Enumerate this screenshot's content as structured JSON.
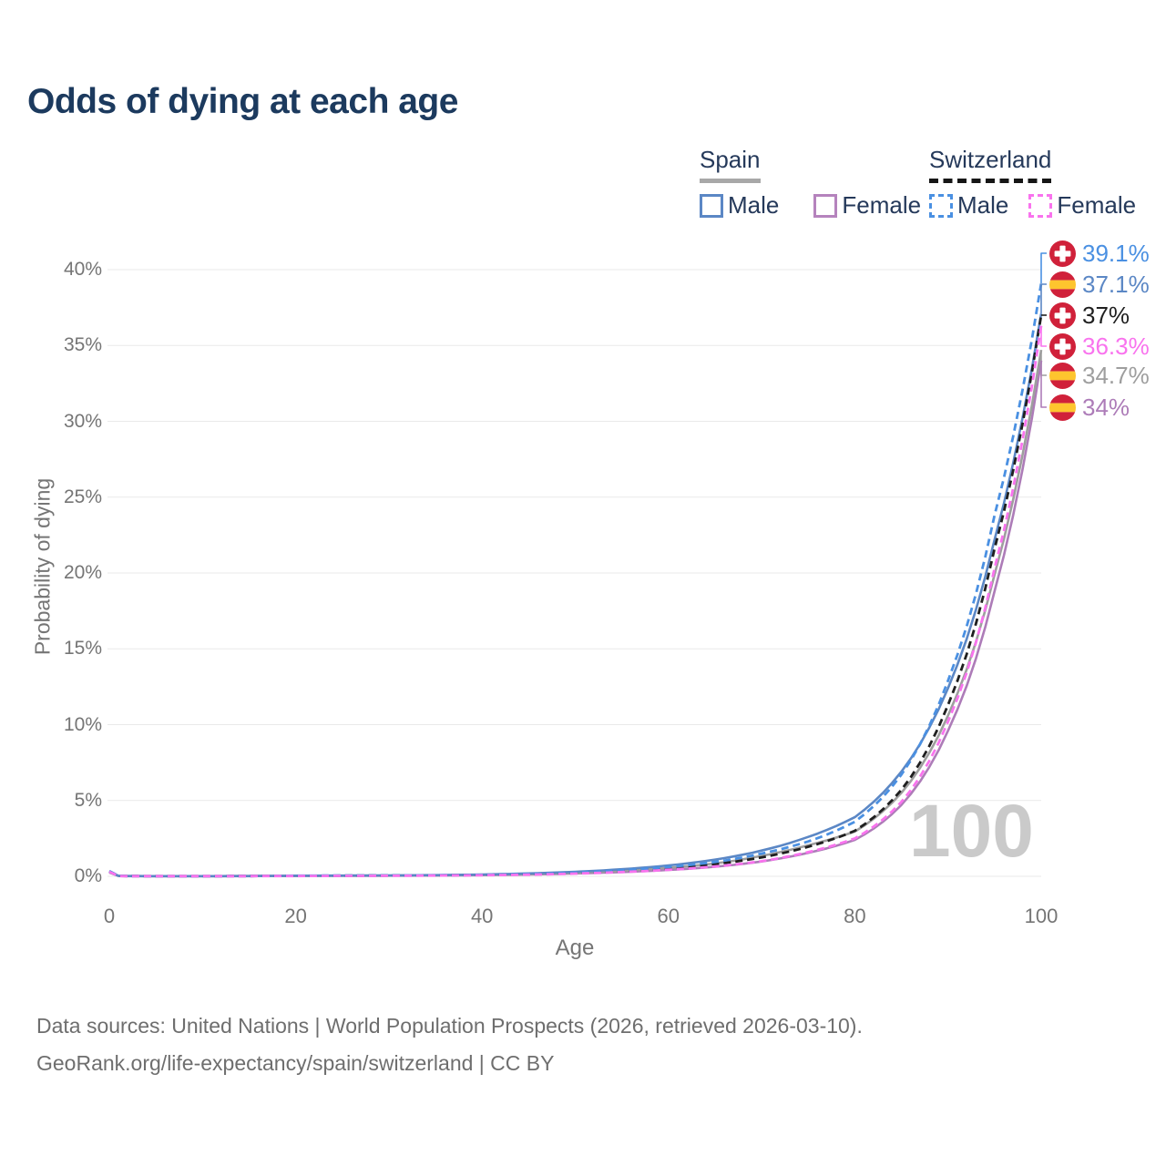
{
  "page_title": "Odds of dying at each age",
  "legend": {
    "groups": [
      {
        "name": "Spain",
        "line_style": "solid",
        "underline_color": "#a8a8a8",
        "items": [
          {
            "label": "Male",
            "color": "#5b87c5"
          },
          {
            "label": "Female",
            "color": "#b583bd"
          }
        ]
      },
      {
        "name": "Switzerland",
        "line_style": "dashed",
        "underline_color": "#161616",
        "items": [
          {
            "label": "Male",
            "color": "#4a90e2"
          },
          {
            "label": "Female",
            "color": "#f973ee"
          }
        ]
      }
    ]
  },
  "chart_data": {
    "type": "line",
    "title": "Odds of dying at each age",
    "xlabel": "Age",
    "ylabel": "Probability of dying",
    "xlim": [
      0,
      100
    ],
    "ylim": [
      0,
      40
    ],
    "x_ticks": [
      0,
      20,
      40,
      60,
      80,
      100
    ],
    "y_ticks": [
      0,
      5,
      10,
      15,
      20,
      25,
      30,
      35,
      40
    ],
    "y_tick_suffix": "%",
    "grid": "horizontal",
    "legend_position": "top-right",
    "hover_age_label": "100",
    "ages": [
      0,
      1,
      2,
      5,
      10,
      15,
      20,
      25,
      30,
      35,
      40,
      45,
      50,
      55,
      60,
      65,
      70,
      75,
      80,
      85,
      90,
      95,
      100
    ],
    "series": [
      {
        "name": "Switzerland Male",
        "flag": "switzerland",
        "style": "dashed",
        "color": "#4a90e2",
        "end_label": "39.1%",
        "label_color": "#4a90e2",
        "values": [
          0.35,
          0.03,
          0.02,
          0.01,
          0.01,
          0.02,
          0.04,
          0.05,
          0.06,
          0.07,
          0.1,
          0.16,
          0.25,
          0.4,
          0.62,
          0.95,
          1.5,
          2.3,
          3.6,
          6.7,
          12.9,
          23.8,
          39.1
        ]
      },
      {
        "name": "Spain Male",
        "flag": "spain",
        "style": "solid",
        "color": "#5b87c5",
        "end_label": "37.1%",
        "label_color": "#5b87c5",
        "values": [
          0.3,
          0.03,
          0.02,
          0.01,
          0.01,
          0.02,
          0.04,
          0.05,
          0.06,
          0.08,
          0.12,
          0.19,
          0.3,
          0.47,
          0.72,
          1.1,
          1.7,
          2.6,
          3.9,
          6.9,
          12.4,
          22.2,
          37.1
        ]
      },
      {
        "name": "Switzerland",
        "flag": "switzerland",
        "style": "dashed",
        "color": "#1f1f1f",
        "end_label": "37%",
        "label_color": "#1f1f1f",
        "values": [
          0.33,
          0.025,
          0.02,
          0.01,
          0.01,
          0.02,
          0.03,
          0.04,
          0.05,
          0.06,
          0.09,
          0.14,
          0.22,
          0.34,
          0.52,
          0.8,
          1.25,
          1.95,
          3.0,
          5.7,
          11.3,
          21.6,
          37.0
        ]
      },
      {
        "name": "Switzerland Female",
        "flag": "switzerland",
        "style": "dashed",
        "color": "#f973ee",
        "end_label": "36.3%",
        "label_color": "#f973ee",
        "values": [
          0.3,
          0.02,
          0.015,
          0.01,
          0.01,
          0.015,
          0.02,
          0.03,
          0.035,
          0.05,
          0.07,
          0.11,
          0.18,
          0.28,
          0.43,
          0.65,
          1.0,
          1.6,
          2.5,
          4.9,
          10.2,
          20.3,
          36.3
        ]
      },
      {
        "name": "Spain",
        "flag": "spain",
        "style": "solid",
        "color": "#9e9e9e",
        "end_label": "34.7%",
        "label_color": "#9e9e9e",
        "values": [
          0.27,
          0.025,
          0.02,
          0.01,
          0.01,
          0.02,
          0.03,
          0.04,
          0.05,
          0.065,
          0.1,
          0.15,
          0.24,
          0.37,
          0.56,
          0.85,
          1.35,
          2.05,
          2.95,
          5.5,
          10.6,
          19.9,
          34.7
        ]
      },
      {
        "name": "Spain Female",
        "flag": "spain",
        "style": "solid",
        "color": "#ad7cb8",
        "end_label": "34%",
        "label_color": "#ad7cb8",
        "values": [
          0.25,
          0.02,
          0.015,
          0.01,
          0.01,
          0.015,
          0.02,
          0.03,
          0.04,
          0.05,
          0.08,
          0.12,
          0.19,
          0.28,
          0.42,
          0.63,
          0.98,
          1.55,
          2.4,
          4.7,
          9.6,
          18.8,
          34.0
        ]
      }
    ]
  },
  "flags": {
    "spain_red": "#d0213a",
    "spain_yellow": "#fec52e",
    "swiss_red": "#d0213a",
    "swiss_cross": "#ffffff"
  },
  "footer": {
    "line1": "Data sources: United Nations | World Population Prospects (2026, retrieved 2026-03-10).",
    "line2": "GeoRank.org/life-expectancy/spain/switzerland | CC BY"
  }
}
